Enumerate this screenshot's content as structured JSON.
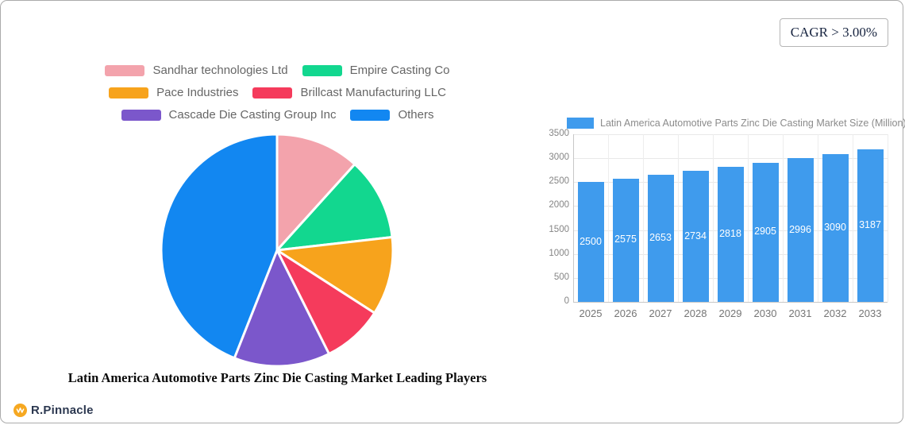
{
  "cagr_box": {
    "label": "CAGR > 3.00%"
  },
  "logo": {
    "text": "R.Pinnacle",
    "mark_color": "#F6A821"
  },
  "chart_data": [
    {
      "type": "pie",
      "title": "Latin America Automotive Parts Zinc Die Casting Market Leading Players",
      "legend_position": "top",
      "start_angle_deg": 0,
      "direction": "clockwise",
      "unit": "percent-share-estimated-from-pixels",
      "series": [
        {
          "name": "Sandhar technologies Ltd",
          "value": 11.7,
          "color": "#F3A3AC"
        },
        {
          "name": "Empire Casting Co",
          "value": 11.5,
          "color": "#12D78F"
        },
        {
          "name": "Pace Industries",
          "value": 10.9,
          "color": "#F7A31C"
        },
        {
          "name": "Brillcast Manufacturing LLC",
          "value": 8.5,
          "color": "#F53B5C"
        },
        {
          "name": "Cascade Die Casting Group Inc",
          "value": 13.4,
          "color": "#7B57CB"
        },
        {
          "name": "Others",
          "value": 44.0,
          "color": "#1287F1"
        }
      ]
    },
    {
      "type": "bar",
      "legend": "Latin America Automotive Parts Zinc Die Casting Market Size (Million)",
      "legend_position": "top-left",
      "categories": [
        "2025",
        "2026",
        "2027",
        "2028",
        "2029",
        "2030",
        "2031",
        "2032",
        "2033"
      ],
      "values": [
        2500,
        2575,
        2653,
        2734,
        2818,
        2905,
        2996,
        3090,
        3187
      ],
      "xlabel": "",
      "ylabel": "",
      "ylim": [
        0,
        3500
      ],
      "yticks": [
        0,
        500,
        1000,
        1500,
        2000,
        2500,
        3000,
        3500
      ],
      "bar_color": "#3F9BED",
      "grid": true,
      "value_labels": "inside-center-white"
    }
  ]
}
